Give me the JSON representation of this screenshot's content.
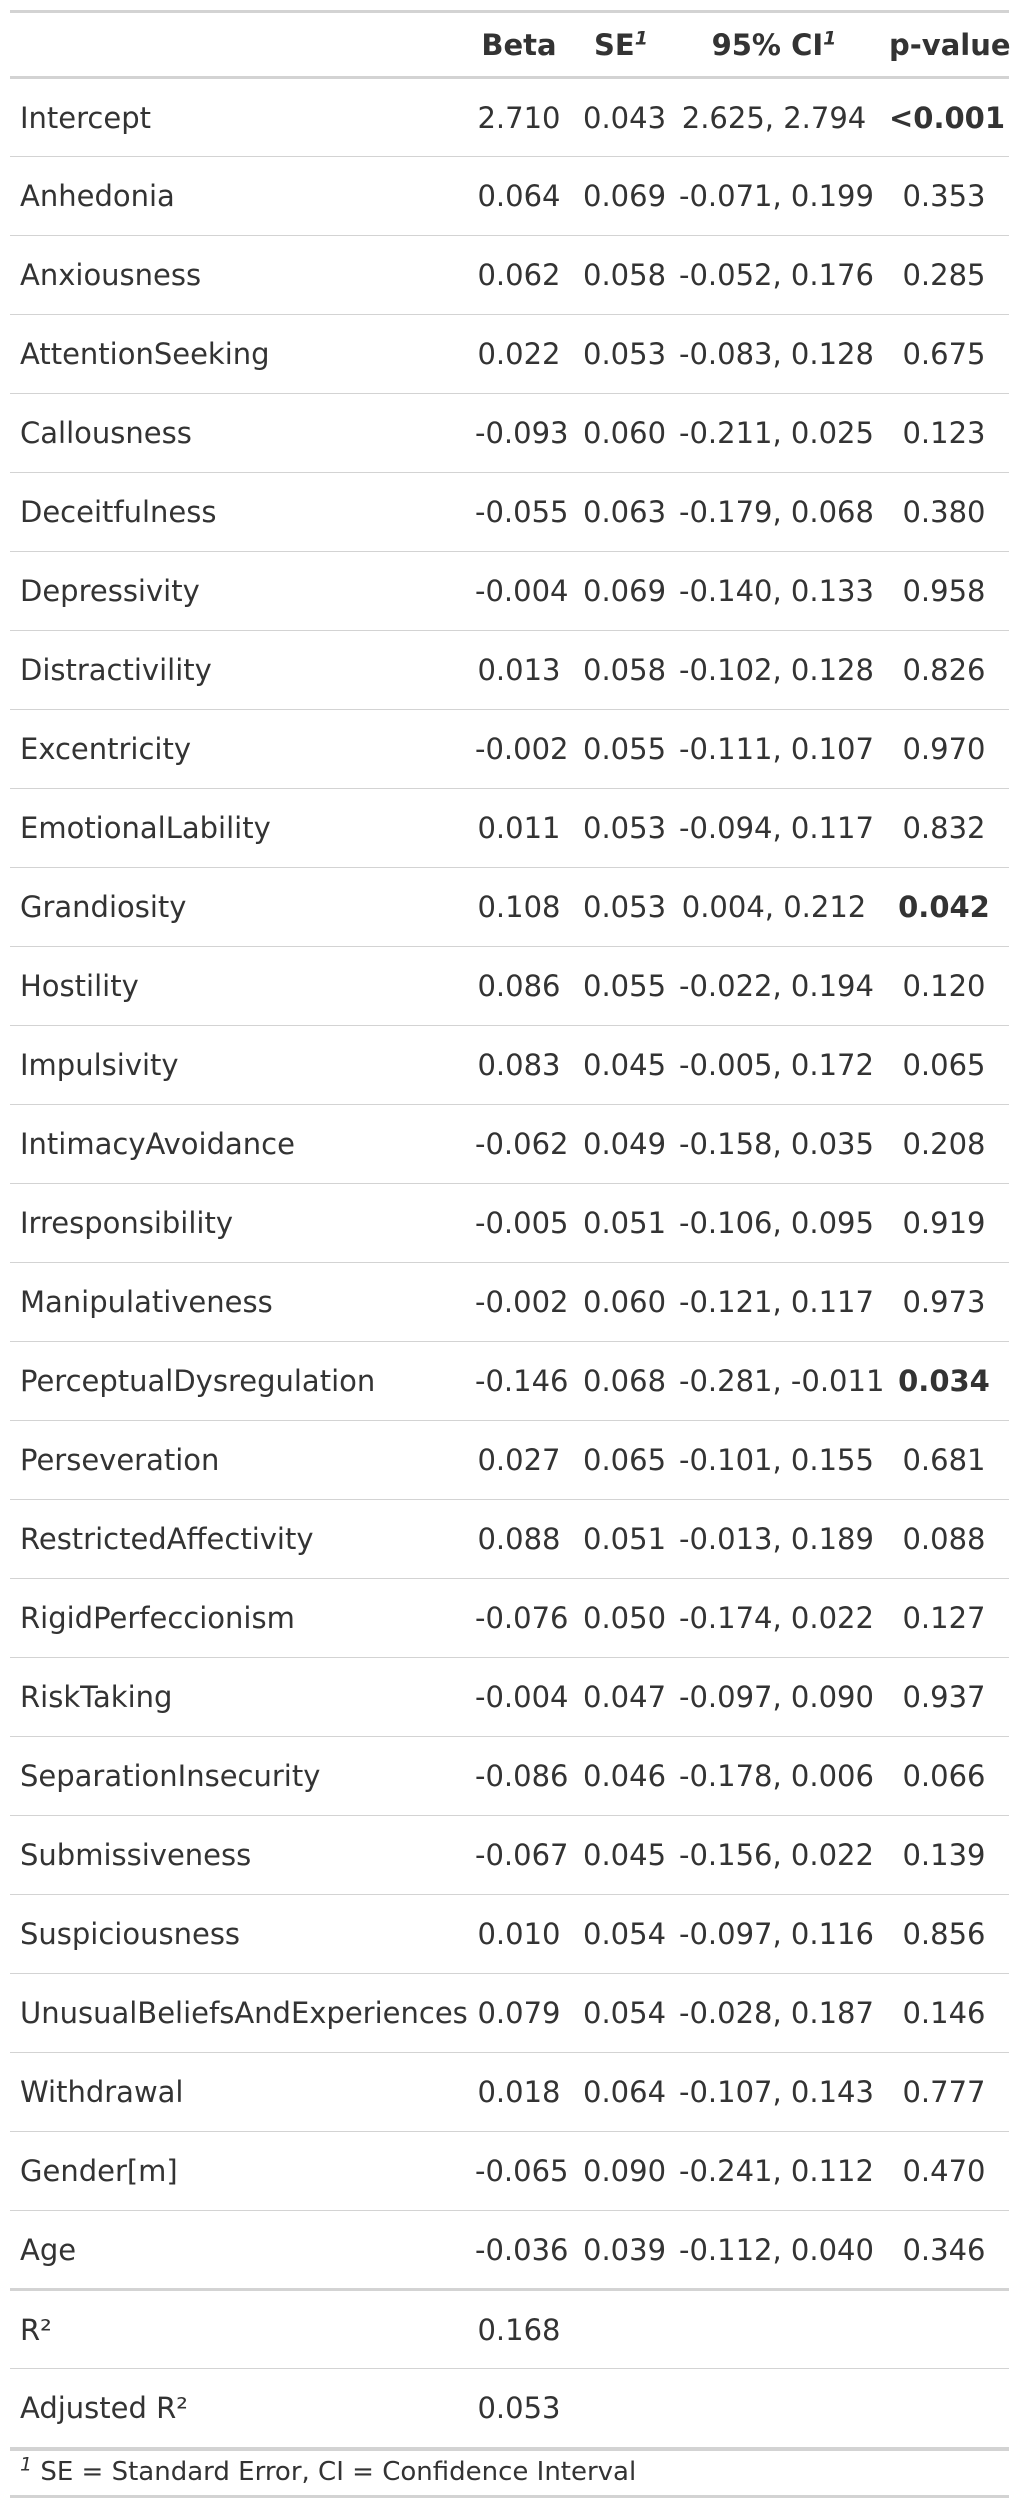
{
  "header": {
    "term": "",
    "beta": "Beta",
    "se": "SE",
    "se_note": "1",
    "ci": "95% CI",
    "ci_note": "1",
    "p": "p-value"
  },
  "rows": [
    {
      "term": "Intercept",
      "beta": "2.710",
      "se": "0.043",
      "ci": "2.625, 2.794",
      "p": "<0.001",
      "bold": true
    },
    {
      "term": "Anhedonia",
      "beta": "0.064",
      "se": "0.069",
      "ci": "-0.071, 0.199",
      "p": "0.353"
    },
    {
      "term": "Anxiousness",
      "beta": "0.062",
      "se": "0.058",
      "ci": "-0.052, 0.176",
      "p": "0.285"
    },
    {
      "term": "AttentionSeeking",
      "beta": "0.022",
      "se": "0.053",
      "ci": "-0.083, 0.128",
      "p": "0.675"
    },
    {
      "term": "Callousness",
      "beta": "-0.093",
      "se": "0.060",
      "ci": "-0.211, 0.025",
      "p": "0.123"
    },
    {
      "term": "Deceitfulness",
      "beta": "-0.055",
      "se": "0.063",
      "ci": "-0.179, 0.068",
      "p": "0.380"
    },
    {
      "term": "Depressivity",
      "beta": "-0.004",
      "se": "0.069",
      "ci": "-0.140, 0.133",
      "p": "0.958"
    },
    {
      "term": "Distractivility",
      "beta": "0.013",
      "se": "0.058",
      "ci": "-0.102, 0.128",
      "p": "0.826"
    },
    {
      "term": "Excentricity",
      "beta": "-0.002",
      "se": "0.055",
      "ci": "-0.111, 0.107",
      "p": "0.970"
    },
    {
      "term": "EmotionalLability",
      "beta": "0.011",
      "se": "0.053",
      "ci": "-0.094, 0.117",
      "p": "0.832"
    },
    {
      "term": "Grandiosity",
      "beta": "0.108",
      "se": "0.053",
      "ci": "0.004, 0.212",
      "p": "0.042",
      "bold": true
    },
    {
      "term": "Hostility",
      "beta": "0.086",
      "se": "0.055",
      "ci": "-0.022, 0.194",
      "p": "0.120"
    },
    {
      "term": "Impulsivity",
      "beta": "0.083",
      "se": "0.045",
      "ci": "-0.005, 0.172",
      "p": "0.065"
    },
    {
      "term": "IntimacyAvoidance",
      "beta": "-0.062",
      "se": "0.049",
      "ci": "-0.158, 0.035",
      "p": "0.208"
    },
    {
      "term": "Irresponsibility",
      "beta": "-0.005",
      "se": "0.051",
      "ci": "-0.106, 0.095",
      "p": "0.919"
    },
    {
      "term": "Manipulativeness",
      "beta": "-0.002",
      "se": "0.060",
      "ci": "-0.121, 0.117",
      "p": "0.973"
    },
    {
      "term": "PerceptualDysregulation",
      "beta": "-0.146",
      "se": "0.068",
      "ci": "-0.281, -0.011",
      "p": "0.034",
      "bold": true
    },
    {
      "term": "Perseveration",
      "beta": "0.027",
      "se": "0.065",
      "ci": "-0.101, 0.155",
      "p": "0.681"
    },
    {
      "term": "RestrictedAffectivity",
      "beta": "0.088",
      "se": "0.051",
      "ci": "-0.013, 0.189",
      "p": "0.088"
    },
    {
      "term": "RigidPerfeccionism",
      "beta": "-0.076",
      "se": "0.050",
      "ci": "-0.174, 0.022",
      "p": "0.127"
    },
    {
      "term": "RiskTaking",
      "beta": "-0.004",
      "se": "0.047",
      "ci": "-0.097, 0.090",
      "p": "0.937"
    },
    {
      "term": "SeparationInsecurity",
      "beta": "-0.086",
      "se": "0.046",
      "ci": "-0.178, 0.006",
      "p": "0.066"
    },
    {
      "term": "Submissiveness",
      "beta": "-0.067",
      "se": "0.045",
      "ci": "-0.156, 0.022",
      "p": "0.139"
    },
    {
      "term": "Suspiciousness",
      "beta": "0.010",
      "se": "0.054",
      "ci": "-0.097, 0.116",
      "p": "0.856"
    },
    {
      "term": "UnusualBeliefsAndExperiences",
      "beta": "0.079",
      "se": "0.054",
      "ci": "-0.028, 0.187",
      "p": "0.146"
    },
    {
      "term": "Withdrawal",
      "beta": "0.018",
      "se": "0.064",
      "ci": "-0.107, 0.143",
      "p": "0.777"
    },
    {
      "term": "Gender[m]",
      "beta": "-0.065",
      "se": "0.090",
      "ci": "-0.241, 0.112",
      "p": "0.470"
    },
    {
      "term": "Age",
      "beta": "-0.036",
      "se": "0.039",
      "ci": "-0.112, 0.040",
      "p": "0.346"
    }
  ],
  "glance": [
    {
      "term": "R²",
      "beta": "0.168"
    },
    {
      "term": "Adjusted R²",
      "beta": "0.053"
    }
  ],
  "footnote": {
    "mark": "1",
    "text": "SE = Standard Error, CI = Confidence Interval"
  }
}
